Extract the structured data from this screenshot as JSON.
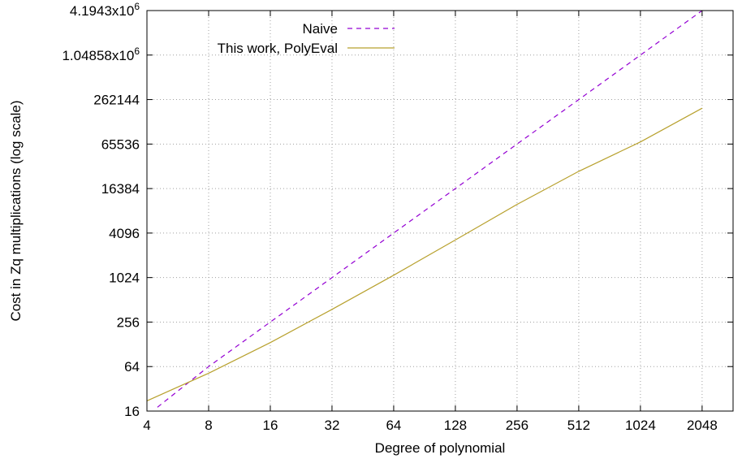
{
  "chart_data": {
    "type": "line",
    "title": "",
    "xlabel": "Degree of polynomial",
    "ylabel": "Cost in Zq multiplications (log scale)",
    "x_scale": "log2",
    "y_scale": "log2",
    "xlim": [
      4,
      2900
    ],
    "ylim": [
      16,
      4194304
    ],
    "grid": true,
    "legend_position": "top-left",
    "x_ticks": [
      {
        "value": 4,
        "label": "4"
      },
      {
        "value": 8,
        "label": "8"
      },
      {
        "value": 16,
        "label": "16"
      },
      {
        "value": 32,
        "label": "32"
      },
      {
        "value": 64,
        "label": "64"
      },
      {
        "value": 128,
        "label": "128"
      },
      {
        "value": 256,
        "label": "256"
      },
      {
        "value": 512,
        "label": "512"
      },
      {
        "value": 1024,
        "label": "1024"
      },
      {
        "value": 2048,
        "label": "2048"
      }
    ],
    "y_ticks": [
      {
        "value": 16,
        "label": "16",
        "sup": ""
      },
      {
        "value": 64,
        "label": "64",
        "sup": ""
      },
      {
        "value": 256,
        "label": "256",
        "sup": ""
      },
      {
        "value": 1024,
        "label": "1024",
        "sup": ""
      },
      {
        "value": 4096,
        "label": "4096",
        "sup": ""
      },
      {
        "value": 16384,
        "label": "16384",
        "sup": ""
      },
      {
        "value": 65536,
        "label": "65536",
        "sup": ""
      },
      {
        "value": 262144,
        "label": "262144",
        "sup": ""
      },
      {
        "value": 1048576,
        "label": "1.04858x10",
        "sup": "6"
      },
      {
        "value": 4194304,
        "label": "4.1943x10",
        "sup": "6"
      }
    ],
    "series": [
      {
        "name": "Naive",
        "color": "#9400d3",
        "dash": "dashed",
        "x": [
          4.5,
          8,
          16,
          32,
          64,
          128,
          256,
          512,
          1024,
          2048
        ],
        "y": [
          18,
          64,
          256,
          1024,
          4096,
          16384,
          65536,
          262144,
          1048576,
          4194304
        ]
      },
      {
        "name": "This work, PolyEval",
        "color": "#b8a12e",
        "dash": "solid",
        "x": [
          4,
          8,
          16,
          32,
          64,
          128,
          256,
          512,
          1024,
          2048
        ],
        "y": [
          22,
          52,
          135,
          380,
          1100,
          3300,
          10000,
          28000,
          70000,
          200000
        ]
      }
    ]
  }
}
